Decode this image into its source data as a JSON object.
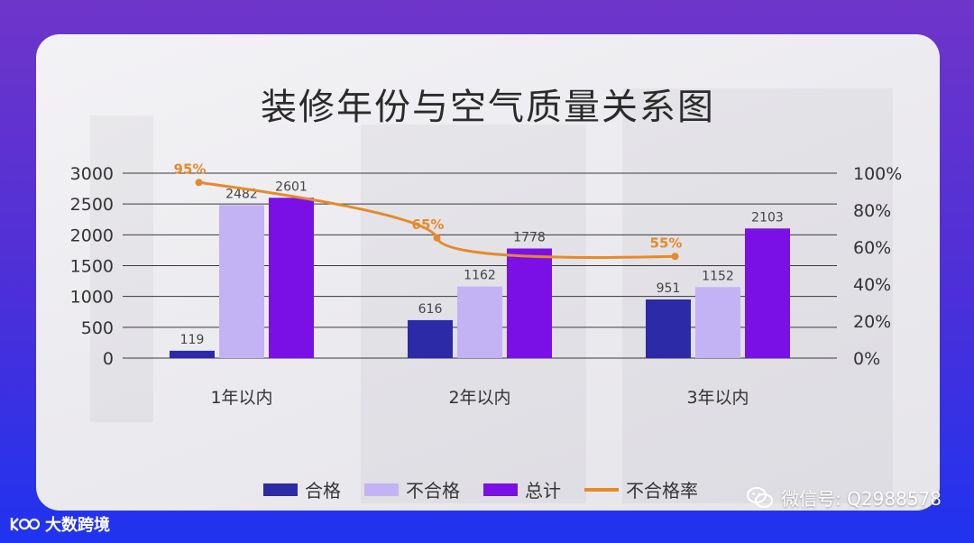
{
  "title": "装修年份与空气质量关系图",
  "chart_data": {
    "type": "bar",
    "categories": [
      "1年以内",
      "2年以内",
      "3年以内"
    ],
    "series": [
      {
        "name": "合格",
        "values": [
          119,
          616,
          951
        ],
        "color": "#2d2aa8"
      },
      {
        "name": "不合格",
        "values": [
          2482,
          1162,
          1152
        ],
        "color": "#c4b3f4"
      },
      {
        "name": "总计",
        "values": [
          2601,
          1778,
          2103
        ],
        "color": "#7a10e6"
      }
    ],
    "line_series": {
      "name": "不合格率",
      "values": [
        95,
        65,
        55
      ],
      "labels": [
        "95%",
        "65%",
        "55%"
      ],
      "color": "#e58a2b"
    },
    "ylim_left": [
      0,
      3000
    ],
    "left_ticks": [
      "0",
      "500",
      "1000",
      "1500",
      "2000",
      "2500",
      "3000"
    ],
    "ylim_right": [
      0,
      100
    ],
    "right_ticks": [
      "0%",
      "20%",
      "40%",
      "60%",
      "80%",
      "100%"
    ],
    "grid": true,
    "legend_position": "bottom"
  },
  "legend": [
    "合格",
    "不合格",
    "总计",
    "不合格率"
  ],
  "watermark": {
    "icon": "wechat-icon",
    "text": "微信号: Q2988578"
  },
  "brand": {
    "text": "大数跨境"
  }
}
